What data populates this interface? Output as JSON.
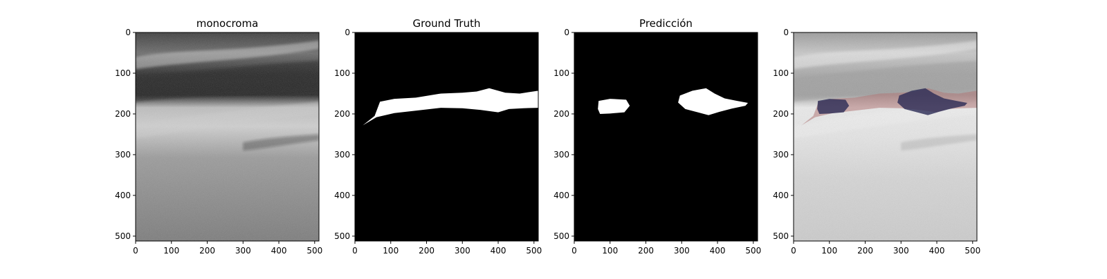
{
  "panels": [
    {
      "id": "mono",
      "title": "monocroma"
    },
    {
      "id": "gt",
      "title": "Ground Truth"
    },
    {
      "id": "pred",
      "title": "Predicción"
    },
    {
      "id": "overlay",
      "title": ""
    }
  ],
  "axes": {
    "x_ticks": [
      0,
      100,
      200,
      300,
      400,
      500
    ],
    "y_ticks": [
      0,
      100,
      200,
      300,
      400,
      500
    ],
    "x_range": [
      0,
      512
    ],
    "y_range": [
      0,
      512
    ]
  },
  "colors": {
    "mask_fg": "#ffffff",
    "mask_bg": "#000000",
    "gt_overlay": "#b07878",
    "pred_overlay": "#2a2a55"
  }
}
